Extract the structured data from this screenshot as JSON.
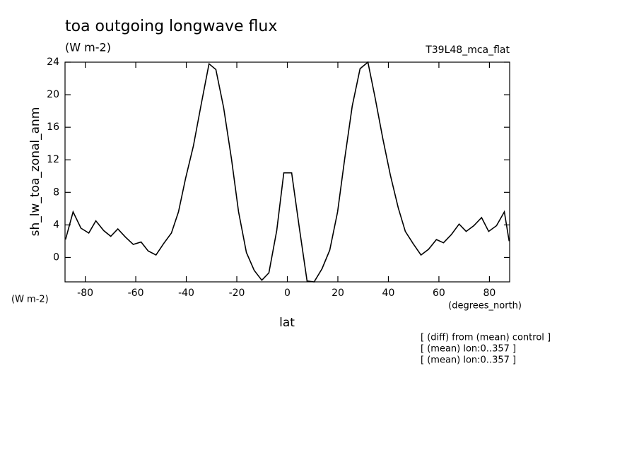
{
  "chart_data": {
    "type": "line",
    "title": "toa outgoing longwave flux",
    "subtitle": "(W m-2)",
    "run_label": "T39L48_mca_flat",
    "y_label": "sh_lw_toa_zonal_anm",
    "y_units": "(W m-2)",
    "x_label": "lat",
    "x_units": "(degrees_north)",
    "notes": [
      "[ (diff) from (mean) control ]",
      "[ (mean) lon:0..357 ]",
      "[ (mean) lon:0..357 ]"
    ],
    "color": "#000000",
    "x": [
      -87.8,
      -84.8,
      -81.7,
      -78.6,
      -75.8,
      -72.7,
      -69.9,
      -67.1,
      -64.1,
      -61.0,
      -57.9,
      -55.1,
      -52.0,
      -49.0,
      -45.9,
      -43.1,
      -40.3,
      -37.2,
      -34.1,
      -31.0,
      -28.3,
      -25.2,
      -22.1,
      -19.3,
      -16.2,
      -13.1,
      -10.1,
      -7.3,
      -4.2,
      -1.4,
      1.7,
      4.8,
      7.8,
      10.6,
      13.7,
      16.8,
      19.9,
      22.7,
      25.7,
      28.8,
      31.9,
      34.7,
      37.8,
      40.8,
      43.9,
      46.7,
      49.8,
      52.9,
      55.9,
      59.0,
      61.8,
      64.9,
      68.0,
      70.8,
      73.8,
      76.9,
      79.7,
      82.8,
      85.9,
      87.8
    ],
    "values": [
      2.2,
      5.6,
      3.6,
      3.0,
      4.5,
      3.3,
      2.6,
      3.5,
      2.5,
      1.6,
      1.9,
      0.8,
      0.3,
      1.7,
      3.0,
      5.6,
      9.7,
      13.7,
      18.8,
      23.8,
      23.1,
      18.4,
      12.1,
      5.6,
      0.6,
      -1.6,
      -2.8,
      -1.9,
      3.3,
      10.4,
      10.4,
      3.5,
      -2.9,
      -3.0,
      -1.4,
      0.9,
      5.6,
      12.1,
      18.6,
      23.2,
      24.0,
      19.7,
      14.6,
      10.1,
      6.1,
      3.2,
      1.7,
      0.3,
      1.0,
      2.2,
      1.8,
      2.8,
      4.1,
      3.2,
      3.9,
      4.9,
      3.2,
      3.9,
      5.6,
      2.0
    ],
    "xlim": [
      -88,
      88
    ],
    "ylim": [
      -3,
      24
    ],
    "xticks": [
      -80,
      -60,
      -40,
      -20,
      0,
      20,
      40,
      60,
      80
    ],
    "yticks": [
      0,
      4,
      8,
      12,
      16,
      20,
      24
    ]
  }
}
